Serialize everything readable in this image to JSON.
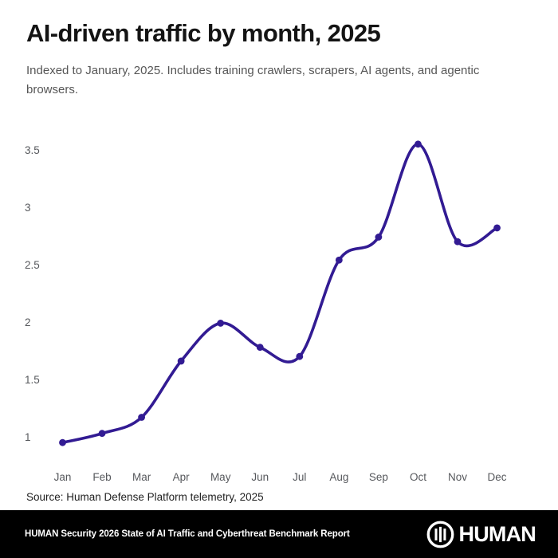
{
  "header": {
    "title": "AI-driven traffic by month, 2025",
    "subtitle": "Indexed to January, 2025. Includes training crawlers, scrapers, AI agents, and agentic browsers."
  },
  "chart_data": {
    "type": "line",
    "title": "AI-driven traffic by month, 2025",
    "categories": [
      "Jan",
      "Feb",
      "Mar",
      "Apr",
      "May",
      "Jun",
      "Jul",
      "Aug",
      "Sep",
      "Oct",
      "Nov",
      "Dec"
    ],
    "series": [
      {
        "name": "AI-driven traffic (indexed to Jan 2025)",
        "values": [
          0.95,
          1.03,
          1.17,
          1.66,
          1.99,
          1.78,
          1.7,
          2.54,
          2.74,
          3.55,
          2.7,
          2.82
        ]
      }
    ],
    "xlabel": "",
    "ylabel": "",
    "yticks": [
      1,
      1.5,
      2,
      2.5,
      3,
      3.5
    ],
    "ylim": [
      0.75,
      3.7
    ],
    "grid": false,
    "legend": "none",
    "line_color": "#321B93",
    "marker": "circle",
    "tick_color": "#56585c"
  },
  "source": {
    "text": "Source: Human Defense Platform telemetry, 2025"
  },
  "footer": {
    "report_title": "HUMAN Security 2026 State of AI Traffic and Cyberthreat Benchmark Report",
    "brand": "HUMAN",
    "bar_color": "#000000",
    "text_color": "#ffffff"
  },
  "colors": {
    "background": "#ffffff",
    "accent": "#321B93",
    "title_text": "#141414",
    "subtitle_text": "#565656",
    "tick_text": "#56585c"
  }
}
